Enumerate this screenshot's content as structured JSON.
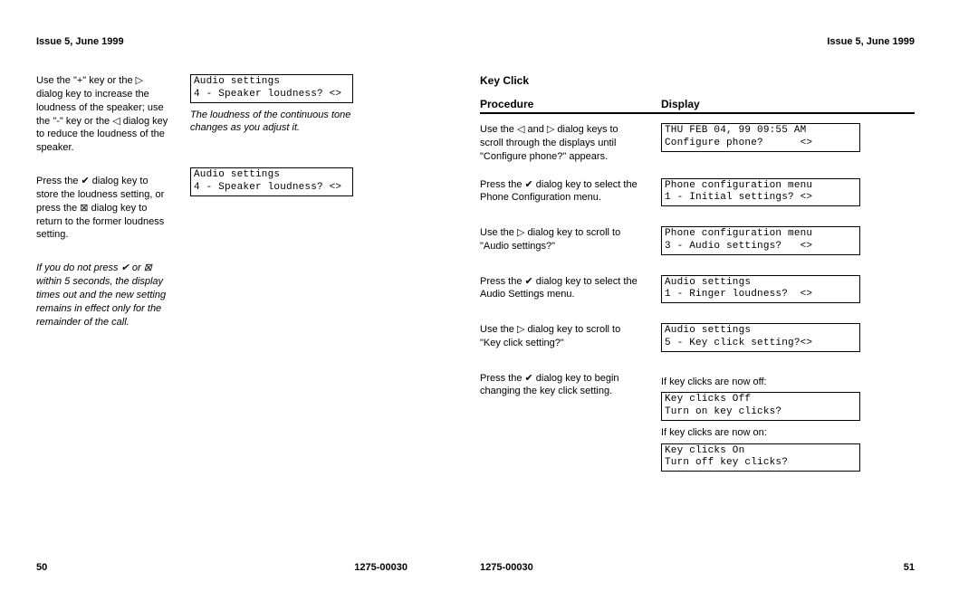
{
  "left": {
    "header": "Issue 5, June 1999",
    "p1": "Use the \"+\" key or the ▷ dialog key to increase the loudness of the speaker; use the \"-\" key or the ◁ dialog key to reduce the loudness of the speaker.",
    "lcd1_l1": "Audio settings",
    "lcd1_l2": "4 - Speaker loudness? <>",
    "cap1": "The loudness of the continuous tone changes as you adjust it.",
    "p2": "Press the ✔ dialog key to store the loudness setting, or press the ⊠ dialog key to return to the former loudness setting.",
    "lcd2_l1": "Audio settings",
    "lcd2_l2": "4 - Speaker loudness? <>",
    "note": "If you do not press ✔ or ⊠ within 5 seconds, the display times out and the new setting remains in effect only for the remainder of the call.",
    "pageNum": "50",
    "docNum": "1275-00030"
  },
  "right": {
    "header": "Issue 5, June 1999",
    "title": "Key Click",
    "thProc": "Procedure",
    "thDisp": "Display",
    "rows": [
      {
        "proc": "Use the ◁ and ▷ dialog keys to scroll through the displays until \"Configure phone?\" appears.",
        "lcd": [
          "THU FEB 04, 99 09:55 AM",
          "Configure phone?      <>"
        ]
      },
      {
        "proc": "Press the ✔ dialog key to select the Phone Configuration menu.",
        "lcd": [
          "Phone configuration menu",
          "1 - Initial settings? <>"
        ]
      },
      {
        "proc": "Use the ▷ dialog key to scroll to \"Audio settings?\"",
        "lcd": [
          "Phone configuration menu",
          "3 - Audio settings?   <>"
        ]
      },
      {
        "proc": "Press the ✔ dialog key to select the Audio Settings menu.",
        "lcd": [
          "Audio settings",
          "1 - Ringer loudness?  <>"
        ]
      },
      {
        "proc": "Use the ▷ dialog key to scroll to \"Key click setting?\"",
        "lcd": [
          "Audio settings",
          "5 - Key click setting?<>"
        ]
      }
    ],
    "lastProc": "Press the ✔ dialog key to begin changing the key click setting.",
    "noteOff": "If key clicks are now off:",
    "lcdOff": [
      "Key clicks Off",
      "Turn on key clicks?"
    ],
    "noteOn": "If key clicks are now on:",
    "lcdOn": [
      "Key clicks On",
      "Turn off key clicks?"
    ],
    "pageNum": "51",
    "docNum": "1275-00030"
  }
}
